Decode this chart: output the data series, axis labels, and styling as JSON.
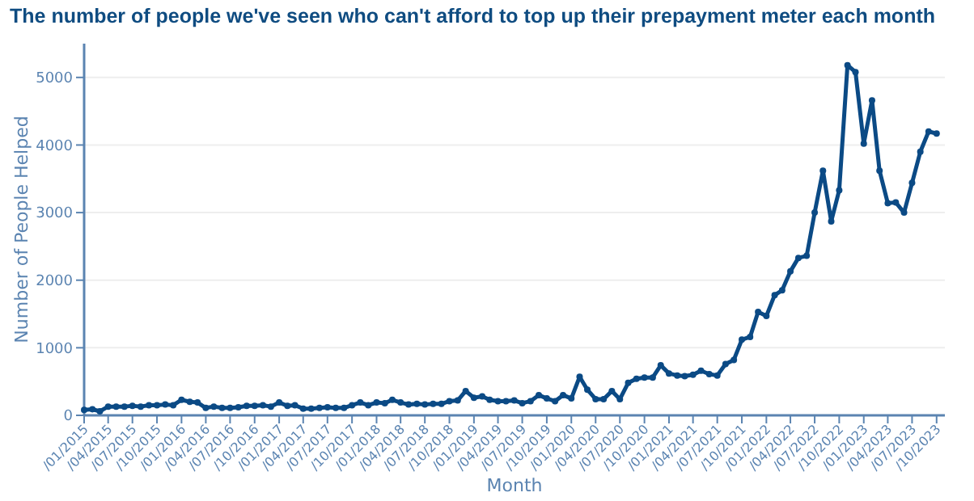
{
  "chart_data": {
    "type": "line",
    "title": "The number of people we've seen who can't afford to top up their prepayment meter each month",
    "xlabel": "Month",
    "ylabel": "Number of People Helped",
    "x": [
      "2015-01",
      "2015-02",
      "2015-03",
      "2015-04",
      "2015-05",
      "2015-06",
      "2015-07",
      "2015-08",
      "2015-09",
      "2015-10",
      "2015-11",
      "2015-12",
      "2016-01",
      "2016-02",
      "2016-03",
      "2016-04",
      "2016-05",
      "2016-06",
      "2016-07",
      "2016-08",
      "2016-09",
      "2016-10",
      "2016-11",
      "2016-12",
      "2017-01",
      "2017-02",
      "2017-03",
      "2017-04",
      "2017-05",
      "2017-06",
      "2017-07",
      "2017-08",
      "2017-09",
      "2017-10",
      "2017-11",
      "2017-12",
      "2018-01",
      "2018-02",
      "2018-03",
      "2018-04",
      "2018-05",
      "2018-06",
      "2018-07",
      "2018-08",
      "2018-09",
      "2018-10",
      "2018-11",
      "2018-12",
      "2019-01",
      "2019-02",
      "2019-03",
      "2019-04",
      "2019-05",
      "2019-06",
      "2019-07",
      "2019-08",
      "2019-09",
      "2019-10",
      "2019-11",
      "2019-12",
      "2020-01",
      "2020-02",
      "2020-03",
      "2020-04",
      "2020-05",
      "2020-06",
      "2020-07",
      "2020-08",
      "2020-09",
      "2020-10",
      "2020-11",
      "2020-12",
      "2021-01",
      "2021-02",
      "2021-03",
      "2021-04",
      "2021-05",
      "2021-06",
      "2021-07",
      "2021-08",
      "2021-09",
      "2021-10",
      "2021-11",
      "2021-12",
      "2022-01",
      "2022-02",
      "2022-03",
      "2022-04",
      "2022-05",
      "2022-06",
      "2022-07",
      "2022-08",
      "2022-09",
      "2022-10",
      "2022-11",
      "2022-12",
      "2023-01",
      "2023-02",
      "2023-03",
      "2023-04",
      "2023-05",
      "2023-06",
      "2023-07",
      "2023-08",
      "2023-09",
      "2023-10"
    ],
    "series": [
      {
        "color": "#0b4a85",
        "values": [
          80,
          90,
          60,
          130,
          130,
          130,
          140,
          130,
          150,
          150,
          160,
          150,
          230,
          200,
          190,
          110,
          130,
          110,
          110,
          120,
          140,
          140,
          150,
          130,
          190,
          140,
          150,
          100,
          100,
          110,
          120,
          110,
          110,
          150,
          190,
          150,
          190,
          180,
          230,
          190,
          160,
          170,
          160,
          170,
          170,
          210,
          220,
          360,
          260,
          280,
          230,
          210,
          210,
          220,
          180,
          210,
          300,
          250,
          210,
          300,
          250,
          570,
          380,
          240,
          240,
          360,
          240,
          480,
          540,
          560,
          560,
          740,
          620,
          590,
          580,
          600,
          660,
          610,
          590,
          760,
          820,
          1120,
          1160,
          1530,
          1470,
          1780,
          1850,
          2130,
          2330,
          2360,
          3000,
          3620,
          2870,
          3330,
          5180,
          5080,
          4020,
          4660,
          3620,
          3140,
          3150,
          3000,
          3440,
          3900,
          4200,
          4170
        ]
      }
    ],
    "xlim": [
      "2015-01",
      "2023-11"
    ],
    "xticks": [
      {
        "value": "2015-01",
        "label": "/01/2015"
      },
      {
        "value": "2015-04",
        "label": "/04/2015"
      },
      {
        "value": "2015-07",
        "label": "/07/2015"
      },
      {
        "value": "2015-10",
        "label": "/10/2015"
      },
      {
        "value": "2016-01",
        "label": "/01/2016"
      },
      {
        "value": "2016-04",
        "label": "/04/2016"
      },
      {
        "value": "2016-07",
        "label": "/07/2016"
      },
      {
        "value": "2016-10",
        "label": "/10/2016"
      },
      {
        "value": "2017-01",
        "label": "/01/2017"
      },
      {
        "value": "2017-04",
        "label": "/04/2017"
      },
      {
        "value": "2017-07",
        "label": "/07/2017"
      },
      {
        "value": "2017-10",
        "label": "/10/2017"
      },
      {
        "value": "2018-01",
        "label": "/01/2018"
      },
      {
        "value": "2018-04",
        "label": "/04/2018"
      },
      {
        "value": "2018-07",
        "label": "/07/2018"
      },
      {
        "value": "2018-10",
        "label": "/10/2018"
      },
      {
        "value": "2019-01",
        "label": "/01/2019"
      },
      {
        "value": "2019-04",
        "label": "/04/2019"
      },
      {
        "value": "2019-07",
        "label": "/07/2019"
      },
      {
        "value": "2019-10",
        "label": "/10/2019"
      },
      {
        "value": "2020-01",
        "label": "/01/2020"
      },
      {
        "value": "2020-04",
        "label": "/04/2020"
      },
      {
        "value": "2020-07",
        "label": "/07/2020"
      },
      {
        "value": "2020-10",
        "label": "/10/2020"
      },
      {
        "value": "2021-01",
        "label": "/01/2021"
      },
      {
        "value": "2021-04",
        "label": "/04/2021"
      },
      {
        "value": "2021-07",
        "label": "/07/2021"
      },
      {
        "value": "2021-10",
        "label": "/10/2021"
      },
      {
        "value": "2022-01",
        "label": "/01/2022"
      },
      {
        "value": "2022-04",
        "label": "/04/2022"
      },
      {
        "value": "2022-07",
        "label": "/07/2022"
      },
      {
        "value": "2022-10",
        "label": "/10/2022"
      },
      {
        "value": "2023-01",
        "label": "/01/2023"
      },
      {
        "value": "2023-04",
        "label": "/04/2023"
      },
      {
        "value": "2023-07",
        "label": "/07/2023"
      },
      {
        "value": "2023-10",
        "label": "/10/2023"
      }
    ],
    "ylim": [
      0,
      5500
    ],
    "yticks": [
      0,
      1000,
      2000,
      3000,
      4000,
      5000
    ],
    "grid": "y",
    "marker": "circle",
    "line_style": "solid"
  }
}
